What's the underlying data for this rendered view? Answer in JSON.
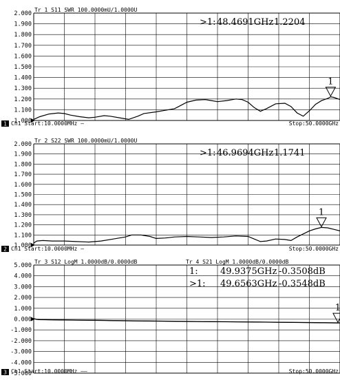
{
  "panels": [
    {
      "channel_number": "1",
      "footer_start": "Ch1   Start:10.0000MHz —",
      "footer_stop": "Stop:50.0000GHz",
      "traces": [
        {
          "header": "Tr 1  S11 SWR 100.0000mU/1.0000U"
        }
      ],
      "marker_readouts": [
        {
          "id": ">1:",
          "freq": "48.4691GHz",
          "value": "1.2204"
        }
      ]
    },
    {
      "channel_number": "2",
      "footer_start": "Ch1   Start:10.0000MHz —",
      "footer_stop": "Stop:50.0000GHz",
      "traces": [
        {
          "header": "Tr 2  S22 SWR 100.0000mU/1.0000U"
        }
      ],
      "marker_readouts": [
        {
          "id": ">1:",
          "freq": "46.9694GHz",
          "value": "1.1741"
        }
      ]
    },
    {
      "channel_number": "3",
      "footer_start": "Ch1   Start:10.0000MHz ——",
      "footer_stop": "Stop:50.0000GHz",
      "traces": [
        {
          "header": "Tr 3  S12 LogM 1.0000dB/0.0000dB"
        },
        {
          "header": "Tr 4  S21 LogM 1.0000dB/0.0000dB"
        }
      ],
      "marker_readouts": [
        {
          "id": "1:",
          "freq": "49.9375GHz",
          "value": "-0.3508dB"
        },
        {
          "id": ">1:",
          "freq": "49.6563GHz",
          "value": "-0.3548dB"
        }
      ]
    }
  ],
  "chart_data": [
    {
      "type": "line",
      "xlim": [
        0.01,
        50
      ],
      "ylim": [
        1.0,
        2.0
      ],
      "yticks": [
        "2.000",
        "1.900",
        "1.800",
        "1.700",
        "1.600",
        "1.500",
        "1.400",
        "1.300",
        "1.200",
        "1.100",
        "1.000"
      ],
      "grid": true,
      "marker": {
        "label": "1",
        "x": 48.4691,
        "y": 1.2204
      },
      "series": [
        {
          "x": [
            0.01,
            1,
            2.5,
            4,
            5,
            6,
            7.5,
            9,
            10,
            11.5,
            12.5,
            14,
            15.5,
            17,
            18,
            20,
            21.5,
            23,
            24,
            25,
            26.5,
            28,
            29,
            30,
            31.5,
            33,
            34,
            35,
            36,
            37,
            38,
            39.5,
            41,
            42,
            43,
            44,
            45,
            46,
            47,
            48,
            48.4691,
            49,
            50
          ],
          "y": [
            1.01,
            1.035,
            1.06,
            1.07,
            1.065,
            1.05,
            1.035,
            1.025,
            1.03,
            1.045,
            1.04,
            1.025,
            1.01,
            1.04,
            1.065,
            1.08,
            1.095,
            1.11,
            1.14,
            1.17,
            1.19,
            1.195,
            1.185,
            1.175,
            1.185,
            1.2,
            1.195,
            1.17,
            1.12,
            1.085,
            1.11,
            1.155,
            1.16,
            1.13,
            1.07,
            1.04,
            1.09,
            1.15,
            1.185,
            1.205,
            1.2204,
            1.215,
            1.195
          ]
        }
      ]
    },
    {
      "type": "line",
      "xlim": [
        0.01,
        50
      ],
      "ylim": [
        1.0,
        2.0
      ],
      "yticks": [
        "2.000",
        "1.900",
        "1.800",
        "1.700",
        "1.600",
        "1.500",
        "1.400",
        "1.300",
        "1.200",
        "1.100",
        "1.000"
      ],
      "grid": true,
      "marker": {
        "label": "1",
        "x": 46.9694,
        "y": 1.1741
      },
      "series": [
        {
          "x": [
            0.01,
            0.5,
            1.5,
            3,
            5,
            7,
            9,
            11,
            13,
            15,
            16,
            17.5,
            19,
            20,
            21.5,
            23,
            25,
            27,
            29,
            31,
            33,
            35,
            36,
            37,
            38,
            39.5,
            41,
            42,
            43,
            44,
            45,
            46,
            46.9694,
            48,
            49,
            50
          ],
          "y": [
            1.02,
            1.04,
            1.045,
            1.04,
            1.04,
            1.035,
            1.03,
            1.04,
            1.06,
            1.08,
            1.1,
            1.1,
            1.085,
            1.065,
            1.07,
            1.08,
            1.085,
            1.08,
            1.075,
            1.08,
            1.09,
            1.085,
            1.06,
            1.035,
            1.04,
            1.06,
            1.055,
            1.045,
            1.08,
            1.11,
            1.14,
            1.16,
            1.1741,
            1.17,
            1.155,
            1.14
          ]
        }
      ]
    },
    {
      "type": "line",
      "xlim": [
        0.01,
        50
      ],
      "ylim": [
        -5.0,
        5.0
      ],
      "yticks": [
        "5.000",
        "4.000",
        "3.000",
        "2.000",
        "1.000",
        "0.000",
        "-1.000",
        "-2.000",
        "-3.000",
        "-4.000",
        "-5.000"
      ],
      "grid": true,
      "marker": {
        "label": "1",
        "x": 49.6563,
        "y": -0.3548
      },
      "series": [
        {
          "x": [
            0.01,
            0.5,
            1,
            5,
            10,
            15,
            20,
            25,
            30,
            35,
            40,
            45,
            49.6563,
            50
          ],
          "y": [
            0.05,
            -0.03,
            -0.06,
            -0.09,
            -0.12,
            -0.16,
            -0.19,
            -0.22,
            -0.25,
            -0.27,
            -0.3,
            -0.33,
            -0.3548,
            -0.35
          ]
        },
        {
          "x": [
            0.01,
            0.5,
            1,
            5,
            10,
            15,
            20,
            25,
            30,
            35,
            40,
            45,
            49.9375,
            50
          ],
          "y": [
            0.02,
            -0.02,
            -0.05,
            -0.08,
            -0.11,
            -0.15,
            -0.18,
            -0.21,
            -0.24,
            -0.26,
            -0.29,
            -0.32,
            -0.3508,
            -0.35
          ]
        }
      ]
    }
  ]
}
